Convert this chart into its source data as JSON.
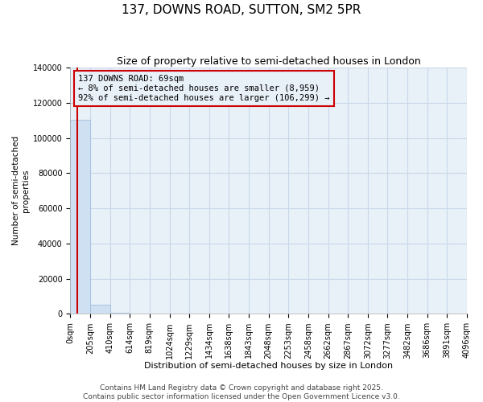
{
  "title": "137, DOWNS ROAD, SUTTON, SM2 5PR",
  "subtitle": "Size of property relative to semi-detached houses in London",
  "xlabel": "Distribution of semi-detached houses by size in London",
  "ylabel": "Number of semi-detached\nproperties",
  "property_size": 69,
  "annotation_line1": "137 DOWNS ROAD: 69sqm",
  "annotation_line2": "← 8% of semi-detached houses are smaller (8,959)",
  "annotation_line3": "92% of semi-detached houses are larger (106,299) →",
  "ylim": [
    0,
    140000
  ],
  "yticks": [
    0,
    20000,
    40000,
    60000,
    80000,
    100000,
    120000,
    140000
  ],
  "bin_edges": [
    0,
    205,
    410,
    614,
    819,
    1024,
    1229,
    1434,
    1638,
    1843,
    2048,
    2253,
    2458,
    2662,
    2867,
    3072,
    3277,
    3482,
    3686,
    3891,
    4096
  ],
  "bar_heights": [
    110500,
    5200,
    500,
    150,
    60,
    30,
    15,
    8,
    5,
    4,
    3,
    2,
    2,
    1,
    1,
    1,
    1,
    1,
    1,
    1
  ],
  "bar_color": "#cfe0f3",
  "bar_edge_color": "#9ab8d8",
  "property_line_color": "#cc0000",
  "annotation_box_color": "#cc0000",
  "grid_color": "#c8d8e8",
  "background_color": "#ffffff",
  "plot_bg_color": "#e8f0f8",
  "footer_text": "Contains HM Land Registry data © Crown copyright and database right 2025.\nContains public sector information licensed under the Open Government Licence v3.0.",
  "title_fontsize": 11,
  "subtitle_fontsize": 9,
  "xlabel_fontsize": 8,
  "ylabel_fontsize": 7.5,
  "tick_fontsize": 7,
  "annotation_fontsize": 7.5,
  "footer_fontsize": 6.5
}
